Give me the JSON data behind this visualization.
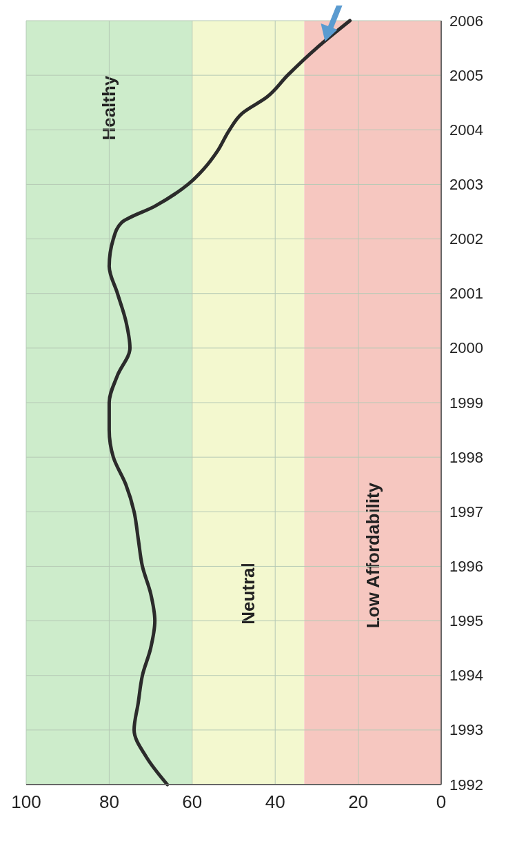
{
  "chart_data": {
    "type": "line",
    "orientation": "horizontal",
    "x": [
      1992,
      1992.5,
      1993,
      1993.5,
      1994,
      1994.5,
      1995,
      1995.5,
      1996,
      1996.5,
      1997,
      1997.5,
      1998,
      1998.5,
      1999,
      1999.5,
      2000,
      2000.5,
      2001,
      2001.5,
      2002,
      2002.3,
      2002.6,
      2003,
      2003.3,
      2003.6,
      2004,
      2004.3,
      2004.6,
      2005,
      2005.5,
      2006
    ],
    "series": [
      {
        "color": "#2b2b2b",
        "values": [
          66,
          71,
          74,
          73,
          72,
          70,
          69,
          70,
          72,
          73,
          74,
          76,
          79,
          80,
          80,
          78,
          75,
          76,
          78,
          80,
          79,
          77,
          69,
          61,
          57,
          54,
          51,
          48,
          42,
          37,
          30,
          22
        ]
      }
    ],
    "xlim": [
      100,
      0
    ],
    "xticks": [
      0,
      20,
      40,
      60,
      80,
      100
    ],
    "ylim": [
      1992,
      2006
    ],
    "yticks": [
      1992,
      1993,
      1994,
      1995,
      1996,
      1997,
      1998,
      1999,
      2000,
      2001,
      2002,
      2003,
      2004,
      2005,
      2006
    ],
    "grid": true,
    "bands": [
      {
        "axis": "x",
        "from": 60,
        "to": 100,
        "label": "Healthy",
        "color": "#cdeccb"
      },
      {
        "axis": "x",
        "from": 33,
        "to": 60,
        "label": "Neutral",
        "color": "#f3f8cf"
      },
      {
        "axis": "x",
        "from": 0,
        "to": 33,
        "label": "Low Affordability",
        "color": "#f6c7c0"
      }
    ]
  }
}
